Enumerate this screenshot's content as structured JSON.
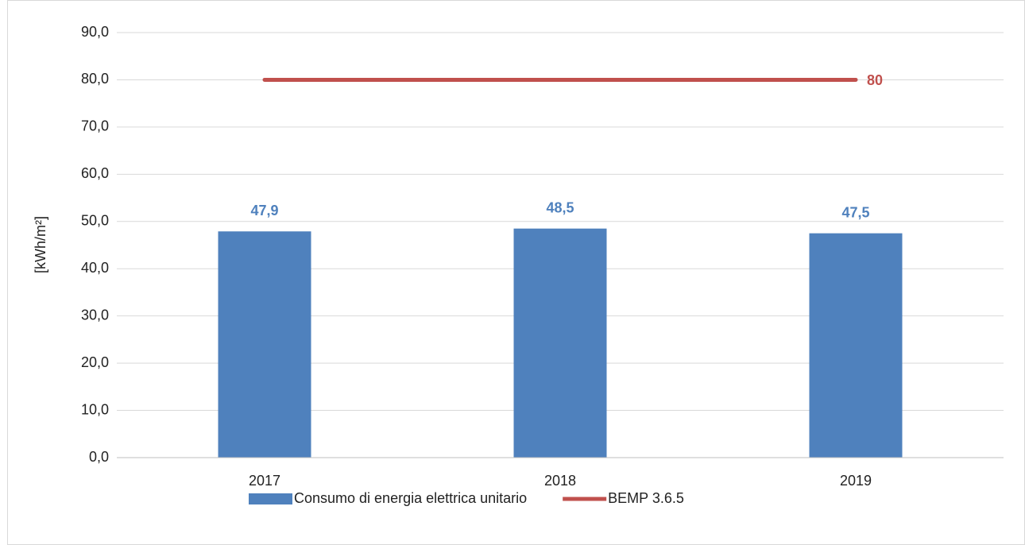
{
  "chart_data": {
    "type": "bar",
    "y_label": "[kWh/m²]",
    "categories": [
      "2017",
      "2018",
      "2019"
    ],
    "series": [
      {
        "name": "Consumo di energia elettrica unitario",
        "type": "bar",
        "color": "#4f81bd",
        "values": [
          47.9,
          48.5,
          47.5
        ],
        "value_labels": [
          "47,9",
          "48,5",
          "47,5"
        ]
      },
      {
        "name": "BEMP 3.6.5",
        "type": "line",
        "color": "#c0504d",
        "values": [
          80,
          80,
          80
        ],
        "value_labels": [
          null,
          null,
          "80"
        ]
      }
    ],
    "ylim": [
      0,
      90
    ],
    "yticks": [
      {
        "value": 0,
        "label": "0,0"
      },
      {
        "value": 10,
        "label": "10,0"
      },
      {
        "value": 20,
        "label": "20,0"
      },
      {
        "value": 30,
        "label": "30,0"
      },
      {
        "value": 40,
        "label": "40,0"
      },
      {
        "value": 50,
        "label": "50,0"
      },
      {
        "value": 60,
        "label": "60,0"
      },
      {
        "value": 70,
        "label": "70,0"
      },
      {
        "value": 80,
        "label": "80,0"
      },
      {
        "value": 90,
        "label": "90,0"
      }
    ],
    "grid": true,
    "legend": "bottom"
  }
}
